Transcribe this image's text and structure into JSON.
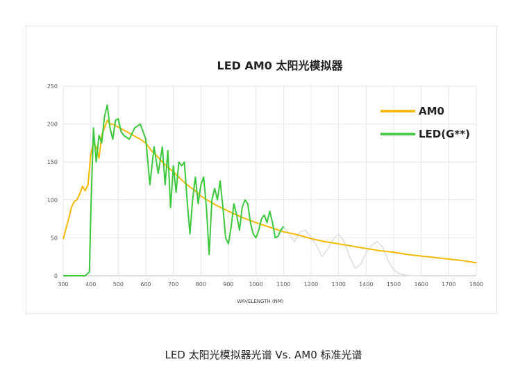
{
  "caption": "LED 太阳光模拟器光谱 Vs. AM0 标准光谱",
  "chart_data": {
    "type": "line",
    "title": "LED AM0 太阳光模拟器",
    "xlabel": "WAVELENGTH (NM)",
    "ylabel": "",
    "xlim": [
      300,
      1800
    ],
    "ylim": [
      0,
      250
    ],
    "xticks": [
      300,
      400,
      500,
      600,
      700,
      800,
      900,
      1000,
      1100,
      1200,
      1300,
      1400,
      1500,
      1600,
      1700,
      1800
    ],
    "yticks": [
      0,
      50,
      100,
      150,
      200,
      250
    ],
    "grid": true,
    "legend_position": "top-right",
    "series": [
      {
        "name": "AM0",
        "color": "#f5b800",
        "x": [
          300,
          310,
          320,
          330,
          340,
          350,
          360,
          370,
          380,
          390,
          400,
          410,
          420,
          430,
          440,
          450,
          460,
          470,
          480,
          490,
          500,
          520,
          540,
          560,
          580,
          600,
          620,
          640,
          660,
          680,
          700,
          720,
          740,
          760,
          780,
          800,
          850,
          900,
          950,
          1000,
          1050,
          1100,
          1150,
          1200,
          1250,
          1300,
          1350,
          1400,
          1450,
          1500,
          1550,
          1600,
          1650,
          1700,
          1750,
          1800
        ],
        "y": [
          48,
          62,
          75,
          90,
          98,
          100,
          108,
          118,
          112,
          120,
          160,
          175,
          170,
          155,
          185,
          195,
          205,
          200,
          200,
          198,
          196,
          192,
          188,
          184,
          180,
          175,
          165,
          158,
          150,
          143,
          137,
          130,
          123,
          117,
          112,
          105,
          94,
          85,
          77,
          70,
          64,
          58,
          54,
          49,
          45,
          42,
          39,
          36,
          33,
          31,
          28,
          26,
          24,
          22,
          20,
          17
        ]
      },
      {
        "name": "LED(G**)",
        "color": "#3cc83c",
        "x": [
          300,
          380,
          395,
          400,
          410,
          420,
          430,
          440,
          450,
          460,
          470,
          480,
          490,
          500,
          510,
          520,
          540,
          560,
          580,
          600,
          615,
          630,
          645,
          660,
          670,
          680,
          690,
          700,
          710,
          720,
          730,
          740,
          750,
          760,
          770,
          780,
          790,
          800,
          810,
          820,
          830,
          840,
          850,
          860,
          870,
          880,
          890,
          900,
          910,
          920,
          930,
          940,
          950,
          960,
          970,
          980,
          990,
          1000,
          1010,
          1020,
          1030,
          1040,
          1050,
          1060,
          1070,
          1080,
          1090,
          1100
        ],
        "y": [
          0,
          0,
          5,
          80,
          195,
          150,
          185,
          175,
          210,
          225,
          195,
          180,
          205,
          207,
          190,
          185,
          180,
          195,
          200,
          180,
          120,
          170,
          135,
          170,
          120,
          165,
          90,
          145,
          110,
          150,
          145,
          150,
          100,
          55,
          100,
          130,
          95,
          120,
          130,
          90,
          28,
          100,
          115,
          100,
          125,
          90,
          50,
          42,
          65,
          95,
          80,
          60,
          90,
          100,
          95,
          70,
          55,
          50,
          60,
          75,
          80,
          70,
          85,
          70,
          50,
          52,
          60,
          65
        ]
      },
      {
        "name": "",
        "color": "#dddddd",
        "x": [
          1100,
          1120,
          1140,
          1160,
          1180,
          1200,
          1220,
          1240,
          1260,
          1280,
          1300,
          1320,
          1340,
          1360,
          1380,
          1400,
          1420,
          1440,
          1460,
          1480,
          1500,
          1520,
          1540,
          1560,
          1580,
          1600
        ],
        "y": [
          65,
          55,
          45,
          58,
          60,
          50,
          40,
          25,
          35,
          48,
          55,
          45,
          25,
          10,
          15,
          30,
          40,
          45,
          38,
          20,
          8,
          3,
          1,
          0,
          0,
          0
        ]
      }
    ]
  }
}
